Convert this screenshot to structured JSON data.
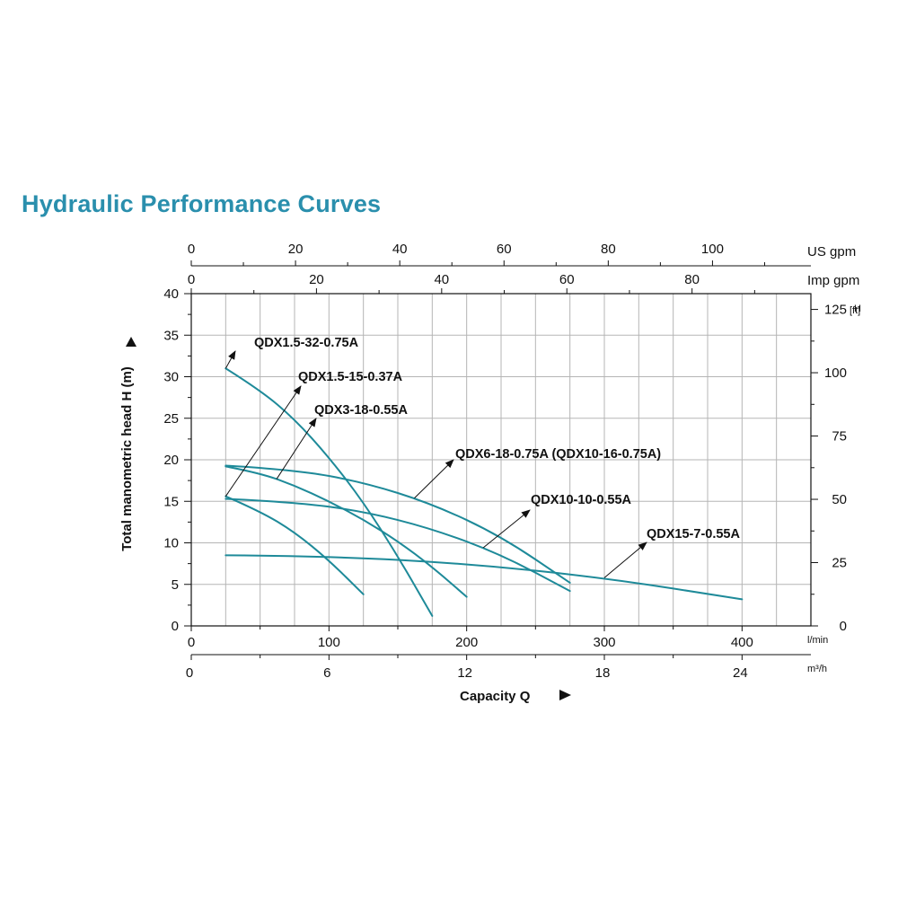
{
  "title": "Hydraulic Performance Curves",
  "colors": {
    "title": "#2a8fad",
    "curve": "#1e8a99",
    "grid": "#b5b5b5",
    "axis": "#111111"
  },
  "chart_data": {
    "type": "line",
    "title": "Hydraulic Performance Curves",
    "xlabel": "Capacity Q",
    "ylabel": "Total manometric head H (m)",
    "xlim": [
      0,
      450
    ],
    "ylim": [
      0,
      40
    ],
    "grid": true,
    "x_axes": {
      "lpm": {
        "unit": "l/min",
        "ticks": [
          "0",
          "100",
          "200",
          "300",
          "400"
        ],
        "values": [
          0,
          100,
          200,
          300,
          400
        ]
      },
      "m3h": {
        "unit": "m³/h",
        "ticks": [
          "0",
          "6",
          "12",
          "18",
          "24"
        ],
        "values": [
          0,
          6,
          12,
          18,
          24
        ]
      },
      "usgpm": {
        "unit": "US gpm",
        "ticks": [
          "0",
          "20",
          "40",
          "60",
          "80",
          "100"
        ],
        "values": [
          0,
          20,
          40,
          60,
          80,
          100
        ]
      },
      "impgpm": {
        "unit": "Imp gpm",
        "ticks": [
          "0",
          "20",
          "40",
          "60",
          "80"
        ],
        "values": [
          0,
          20,
          40,
          60,
          80
        ]
      }
    },
    "y_axes": {
      "m": {
        "ticks": [
          "0",
          "5",
          "10",
          "15",
          "20",
          "25",
          "30",
          "35",
          "40"
        ],
        "values": [
          0,
          5,
          10,
          15,
          20,
          25,
          30,
          35,
          40
        ]
      },
      "ft": {
        "unit": "H [ft]",
        "ticks": [
          "0",
          "25",
          "50",
          "75",
          "100",
          "125"
        ],
        "values": [
          0,
          25,
          50,
          75,
          100,
          125
        ]
      }
    },
    "series": [
      {
        "name": "QDX1.5-32-0.75A",
        "x": [
          25,
          50,
          75,
          100,
          125,
          150,
          175
        ],
        "y": [
          31,
          28.4,
          24.9,
          20.3,
          14.9,
          8.4,
          1.2
        ]
      },
      {
        "name": "QDX1.5-15-0.37A",
        "x": [
          25,
          50,
          75,
          100,
          125
        ],
        "y": [
          15.6,
          13.8,
          11.3,
          7.9,
          3.8
        ]
      },
      {
        "name": "QDX3-18-0.55A",
        "x": [
          25,
          50,
          75,
          100,
          125,
          150,
          175,
          200
        ],
        "y": [
          19.2,
          18.4,
          16.9,
          15,
          12.8,
          10.2,
          7.1,
          3.5
        ]
      },
      {
        "name": "QDX6-18-0.75A (QDX10-16-0.75A)",
        "x": [
          25,
          75,
          125,
          175,
          225,
          275
        ],
        "y": [
          19.3,
          18.8,
          17.3,
          14.7,
          10.8,
          5.2
        ]
      },
      {
        "name": "QDX10-10-0.55A",
        "x": [
          25,
          75,
          125,
          175,
          225,
          275
        ],
        "y": [
          15.3,
          14.9,
          13.8,
          11.7,
          8.6,
          4.2
        ]
      },
      {
        "name": "QDX15-7-0.55A",
        "x": [
          25,
          100,
          200,
          300,
          400
        ],
        "y": [
          8.5,
          8.4,
          7.5,
          5.8,
          3.2
        ]
      }
    ],
    "annotations": [
      {
        "text": "QDX1.5-32-0.75A",
        "points_to_series": "QDX1.5-32-0.75A"
      },
      {
        "text": "QDX1.5-15-0.37A",
        "points_to_series": "QDX1.5-15-0.37A"
      },
      {
        "text": "QDX3-18-0.55A",
        "points_to_series": "QDX3-18-0.55A"
      },
      {
        "text": "QDX6-18-0.75A (QDX10-16-0.75A)",
        "points_to_series": "QDX6-18-0.75A (QDX10-16-0.75A)"
      },
      {
        "text": "QDX10-10-0.55A",
        "points_to_series": "QDX10-10-0.55A"
      },
      {
        "text": "QDX15-7-0.55A",
        "points_to_series": "QDX15-7-0.55A"
      }
    ]
  }
}
